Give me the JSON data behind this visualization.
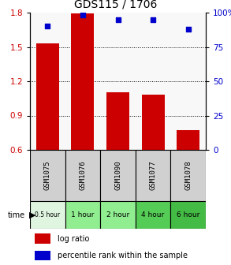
{
  "title": "GDS115 / 1706",
  "samples": [
    "GSM1075",
    "GSM1076",
    "GSM1090",
    "GSM1077",
    "GSM1078"
  ],
  "time_labels": [
    "0.5 hour",
    "1 hour",
    "2 hour",
    "4 hour",
    "6 hour"
  ],
  "time_colors": [
    "#e0f5e0",
    "#90EE90",
    "#90EE90",
    "#55cc55",
    "#44bb44"
  ],
  "log_ratios": [
    1.53,
    1.79,
    1.1,
    1.08,
    0.77
  ],
  "percentile_ranks": [
    90,
    98,
    95,
    95,
    88
  ],
  "ylim_left": [
    0.6,
    1.8
  ],
  "ylim_right": [
    0,
    100
  ],
  "yticks_left": [
    0.6,
    0.9,
    1.2,
    1.5,
    1.8
  ],
  "yticks_right": [
    0,
    25,
    50,
    75,
    100
  ],
  "bar_color": "#CC0000",
  "dot_color": "#0000CC",
  "bar_bottom": 0.6,
  "background_color": "#ffffff",
  "left_label_color": "#CC0000",
  "right_label_color": "#0000CC",
  "grid_yticks": [
    0.9,
    1.2,
    1.5
  ],
  "sample_bg": "#d0d0d0",
  "legend_items": [
    "log ratio",
    "percentile rank within the sample"
  ]
}
